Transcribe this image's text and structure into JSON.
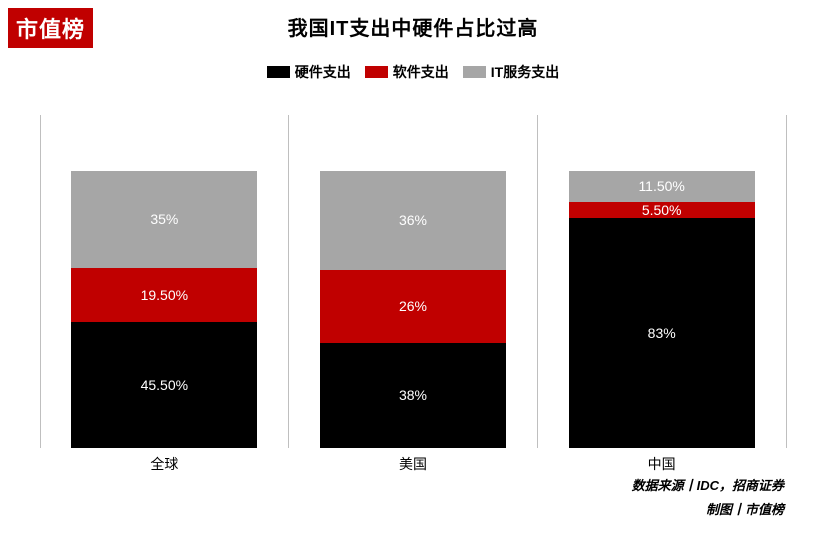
{
  "badge": {
    "text": "市值榜",
    "bg": "#c00000",
    "fg": "#ffffff"
  },
  "title": {
    "text": "我国IT支出中硬件占比过高",
    "fontsize": 20,
    "color": "#000000"
  },
  "legend_fontsize": 14,
  "border_color": "#bfbfbf",
  "background_color": "#ffffff",
  "xlabel_fontsize": 14,
  "series": [
    {
      "key": "hardware",
      "label": "硬件支出",
      "color": "#000000"
    },
    {
      "key": "software",
      "label": "软件支出",
      "color": "#c00000"
    },
    {
      "key": "services",
      "label": "IT服务支出",
      "color": "#a6a6a6"
    }
  ],
  "ymax_pct": 120,
  "bar_width_pct": 75,
  "seg_label_color": "#ffffff",
  "seg_label_fontsize": 14,
  "categories": [
    {
      "name": "全球",
      "segments": [
        {
          "series": "hardware",
          "value": 45.5,
          "label": "45.50%"
        },
        {
          "series": "software",
          "value": 19.5,
          "label": "19.50%"
        },
        {
          "series": "services",
          "value": 35.0,
          "label": "35%"
        }
      ]
    },
    {
      "name": "美国",
      "segments": [
        {
          "series": "hardware",
          "value": 38.0,
          "label": "38%"
        },
        {
          "series": "software",
          "value": 26.0,
          "label": "26%"
        },
        {
          "series": "services",
          "value": 36.0,
          "label": "36%"
        }
      ]
    },
    {
      "name": "中国",
      "segments": [
        {
          "series": "hardware",
          "value": 83.0,
          "label": "83%"
        },
        {
          "series": "software",
          "value": 5.5,
          "label": "5.50%"
        },
        {
          "series": "services",
          "value": 11.5,
          "label": "11.50%"
        }
      ]
    }
  ],
  "source": {
    "line1": "数据来源丨IDC，招商证券",
    "line2": "制图丨市值榜"
  }
}
